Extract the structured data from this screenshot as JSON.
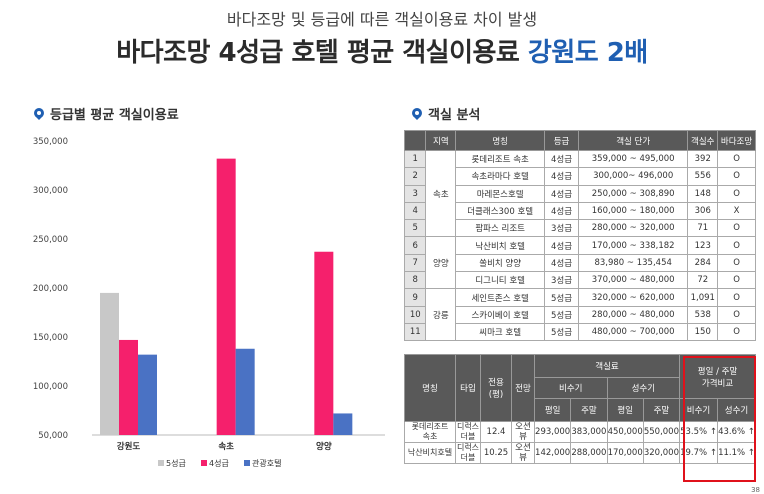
{
  "header": {
    "subtitle": "바다조망 및 등급에 따른 객실이용료 차이 발생",
    "title_main": "바다조망 4성급 호텔 평균 객실이용료 ",
    "title_highlight": "강원도 2배"
  },
  "left_section": {
    "title": "등급별 평균 객실이용료"
  },
  "right_section": {
    "title": "객실 분석"
  },
  "colors": {
    "grade5": "#c8c8c8",
    "grade4": "#f5206c",
    "tourist": "#4a72c4",
    "accent": "#1f5fb2",
    "red_box": "#e0111b"
  },
  "chart_data": {
    "type": "bar",
    "categories": [
      "강원도",
      "속초",
      "양양"
    ],
    "series": [
      {
        "name": "5성급",
        "values": [
          195000,
          null,
          null
        ]
      },
      {
        "name": "4성급",
        "values": [
          147000,
          332000,
          237000
        ]
      },
      {
        "name": "관광호텔",
        "values": [
          132000,
          138000,
          72000
        ]
      }
    ],
    "ylim": [
      50000,
      350000
    ],
    "yticks": [
      "350,000",
      "300,000",
      "250,000",
      "200,000",
      "150,000",
      "100,000",
      "50,000"
    ],
    "grid": false,
    "legend_position": "bottom"
  },
  "table1": {
    "headers": [
      "",
      "지역",
      "명칭",
      "등급",
      "객실 단가",
      "객실수",
      "바다조망"
    ],
    "rows": [
      [
        "1",
        "속초",
        "롯데리조트 속초",
        "4성급",
        "359,000 ~ 495,000",
        "392",
        "O"
      ],
      [
        "2",
        "",
        "속초라마다 호텔",
        "4성급",
        "300,000~ 496,000",
        "556",
        "O"
      ],
      [
        "3",
        "",
        "마레몬스호텔",
        "4성급",
        "250,000 ~ 308,890",
        "148",
        "O"
      ],
      [
        "4",
        "",
        "더클래스300 호텔",
        "4성급",
        "160,000 ~ 180,000",
        "306",
        "X"
      ],
      [
        "5",
        "",
        "팜파스 리조트",
        "3성급",
        "280,000 ~ 320,000",
        "71",
        "O"
      ],
      [
        "6",
        "양양",
        "낙산비치 호텔",
        "4성급",
        "170,000 ~ 338,182",
        "123",
        "O"
      ],
      [
        "7",
        "",
        "쏠비치 양양",
        "4성급",
        "83,980 ~ 135,454",
        "284",
        "O"
      ],
      [
        "8",
        "",
        "디그니티 호텔",
        "3성급",
        "370,000 ~ 480,000",
        "72",
        "O"
      ],
      [
        "9",
        "강릉",
        "세인트존스 호텔",
        "5성급",
        "320,000 ~ 620,000",
        "1,091",
        "O"
      ],
      [
        "10",
        "",
        "스카이베이 호텔",
        "5성급",
        "280,000 ~ 480,000",
        "538",
        "O"
      ],
      [
        "11",
        "",
        "씨마크 호텔",
        "5성급",
        "480,000 ~ 700,000",
        "150",
        "O"
      ]
    ]
  },
  "table2": {
    "h_name": "명칭",
    "h_type": "타입",
    "h_area": "전용(평)",
    "h_view": "전망",
    "h_rate": "객실료",
    "h_off": "비수기",
    "h_peak": "성수기",
    "h_weekday": "평일",
    "h_weekend": "주말",
    "h_compare": "평일 / 주말\n가격비교",
    "h_cmp_off": "비수기",
    "h_cmp_peak": "성수기",
    "rows": [
      [
        "롯데리조트\n속초",
        "디럭스\n더블",
        "12.4",
        "오션뷰",
        "293,000",
        "383,000",
        "450,000",
        "550,000",
        "53.5% ↑",
        "43.6% ↑"
      ],
      [
        "낙산비치호텔",
        "디럭스\n더블",
        "10.25",
        "오션뷰",
        "142,000",
        "288,000",
        "170,000",
        "320,000",
        "19.7% ↑",
        "11.1% ↑"
      ]
    ]
  },
  "page_number": "38"
}
